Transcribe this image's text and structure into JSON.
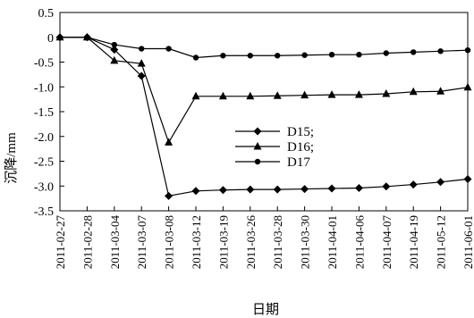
{
  "chart_data": {
    "type": "line",
    "xlabel": "日期",
    "ylabel": "沉降/mm",
    "ylim": [
      -3.5,
      0.5
    ],
    "yticks": [
      "0.5",
      "0",
      "-0.5",
      "-1.0",
      "-1.5",
      "-2.0",
      "-2.5",
      "-3.0",
      "-3.5"
    ],
    "categories": [
      "2011-02-27",
      "2011-02-28",
      "2011-03-04",
      "2011-03-07",
      "2011-03-08",
      "2011-03-12",
      "2011-03-19",
      "2011-03-26",
      "2011-03-28",
      "2011-03-30",
      "2011-04-01",
      "2011-04-06",
      "2011-04-07",
      "2011-04-19",
      "2011-05-12",
      "2011-06-01"
    ],
    "grid": false,
    "legend_position": "center-right",
    "series": [
      {
        "name": "D15;",
        "marker": "diamond",
        "values": [
          0,
          0,
          -0.25,
          -0.78,
          -3.2,
          -3.1,
          -3.08,
          -3.07,
          -3.07,
          -3.06,
          -3.05,
          -3.04,
          -3.01,
          -2.97,
          -2.92,
          -2.86
        ]
      },
      {
        "name": "D16;",
        "marker": "triangle",
        "values": [
          0,
          0,
          -0.47,
          -0.53,
          -2.12,
          -1.19,
          -1.19,
          -1.19,
          -1.18,
          -1.17,
          -1.16,
          -1.16,
          -1.14,
          -1.1,
          -1.09,
          -1.01
        ]
      },
      {
        "name": "D17",
        "marker": "circle",
        "values": [
          0,
          0,
          -0.15,
          -0.23,
          -0.23,
          -0.41,
          -0.37,
          -0.37,
          -0.37,
          -0.36,
          -0.35,
          -0.35,
          -0.32,
          -0.3,
          -0.28,
          -0.26
        ]
      }
    ]
  }
}
